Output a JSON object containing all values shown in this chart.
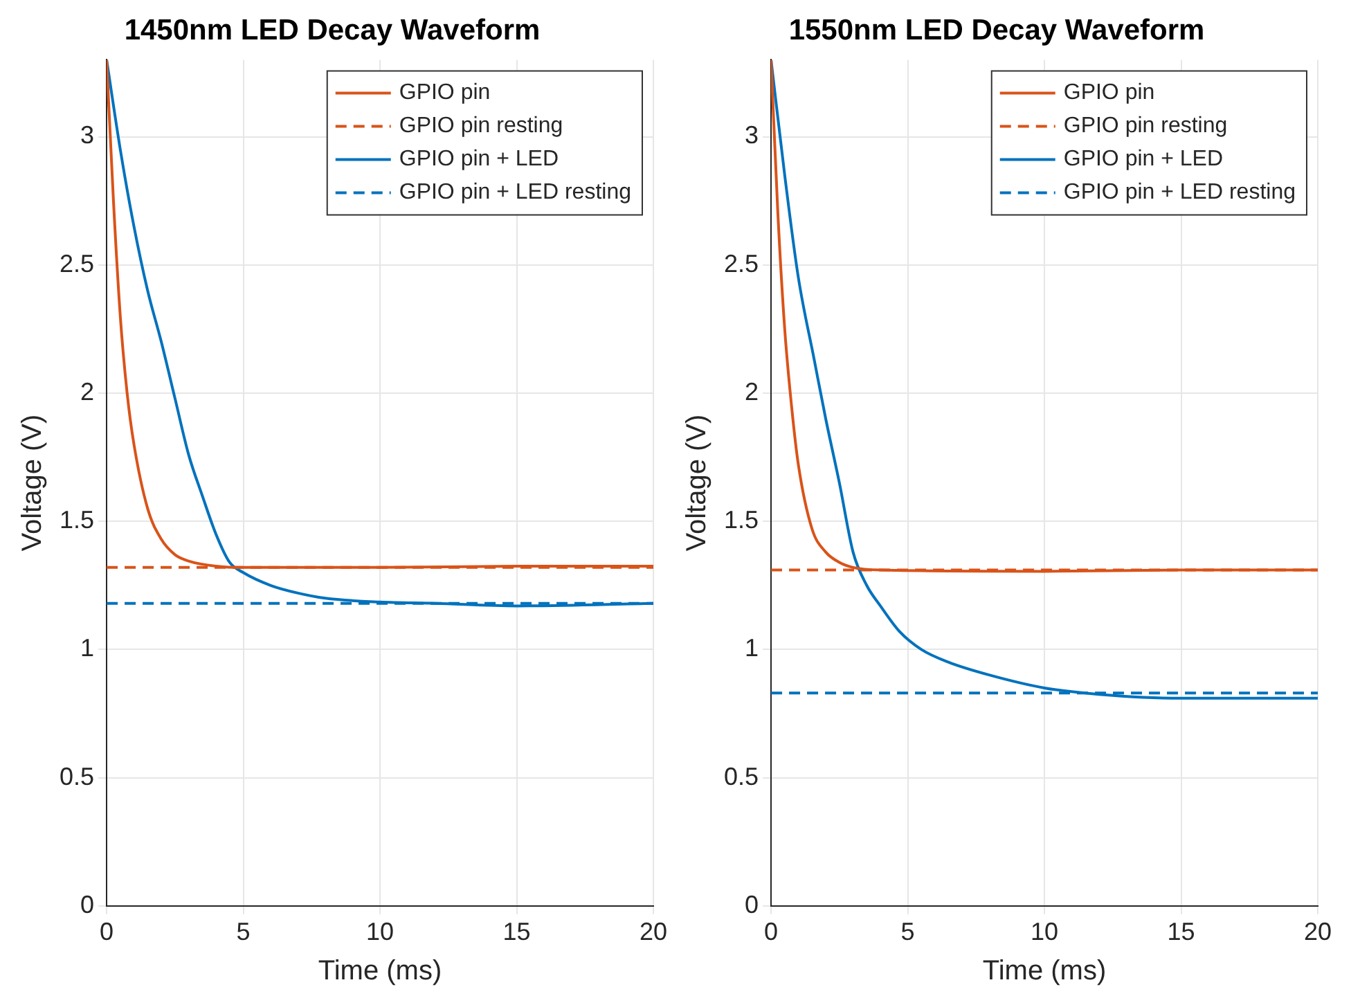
{
  "chart_data": [
    {
      "type": "line",
      "title": "1450nm LED Decay Waveform",
      "xlabel": "Time (ms)",
      "ylabel": "Voltage (V)",
      "xlim": [
        0,
        20
      ],
      "xticks": [
        0,
        5,
        10,
        15,
        20
      ],
      "ylim": [
        0,
        3.3
      ],
      "yticks": [
        0,
        0.5,
        1,
        1.5,
        2,
        2.5,
        3
      ],
      "grid": true,
      "legend": "top right",
      "series": [
        {
          "name": "GPIO pin",
          "color": "#d95319",
          "line_style": "solid",
          "x": [
            0,
            0.25,
            0.5,
            0.75,
            1,
            1.5,
            2,
            2.5,
            3,
            4,
            5,
            10,
            15,
            20
          ],
          "values": [
            3.3,
            2.75,
            2.3,
            2.0,
            1.8,
            1.55,
            1.43,
            1.37,
            1.345,
            1.325,
            1.32,
            1.32,
            1.325,
            1.325
          ]
        },
        {
          "name": "GPIO pin resting",
          "color": "#d95319",
          "line_style": "dashed",
          "x": [
            0,
            20
          ],
          "values": [
            1.32,
            1.32
          ]
        },
        {
          "name": "GPIO pin + LED",
          "color": "#0072bd",
          "line_style": "solid",
          "x": [
            0,
            0.5,
            1,
            1.5,
            2,
            2.5,
            3,
            3.5,
            4,
            4.5,
            5,
            6,
            7,
            8,
            10,
            12,
            15,
            20
          ],
          "values": [
            3.3,
            2.95,
            2.65,
            2.4,
            2.2,
            1.98,
            1.76,
            1.6,
            1.45,
            1.34,
            1.3,
            1.25,
            1.22,
            1.2,
            1.185,
            1.18,
            1.17,
            1.18
          ]
        },
        {
          "name": "GPIO pin + LED resting",
          "color": "#0072bd",
          "line_style": "dashed",
          "x": [
            0,
            20
          ],
          "values": [
            1.18,
            1.18
          ]
        }
      ]
    },
    {
      "type": "line",
      "title": "1550nm LED Decay Waveform",
      "xlabel": "Time (ms)",
      "ylabel": "Voltage (V)",
      "xlim": [
        0,
        20
      ],
      "xticks": [
        0,
        5,
        10,
        15,
        20
      ],
      "ylim": [
        0,
        3.3
      ],
      "yticks": [
        0,
        0.5,
        1,
        1.5,
        2,
        2.5,
        3
      ],
      "grid": true,
      "legend": "top right",
      "series": [
        {
          "name": "GPIO pin",
          "color": "#d95319",
          "line_style": "solid",
          "x": [
            0,
            0.25,
            0.5,
            0.75,
            1,
            1.5,
            2,
            2.5,
            3,
            4,
            10,
            15,
            20
          ],
          "values": [
            3.3,
            2.7,
            2.25,
            1.95,
            1.72,
            1.47,
            1.38,
            1.34,
            1.32,
            1.31,
            1.305,
            1.31,
            1.31
          ]
        },
        {
          "name": "GPIO pin resting",
          "color": "#d95319",
          "line_style": "dashed",
          "x": [
            0,
            20
          ],
          "values": [
            1.31,
            1.31
          ]
        },
        {
          "name": "GPIO pin + LED",
          "color": "#0072bd",
          "line_style": "solid",
          "x": [
            0,
            0.5,
            1,
            1.58,
            2,
            2.5,
            3,
            3.5,
            4,
            4.7,
            5.5,
            6.5,
            8,
            10,
            12,
            15,
            20
          ],
          "values": [
            3.3,
            2.85,
            2.45,
            2.13,
            1.9,
            1.65,
            1.38,
            1.25,
            1.17,
            1.07,
            1.0,
            0.95,
            0.9,
            0.85,
            0.825,
            0.81,
            0.81
          ]
        },
        {
          "name": "GPIO pin + LED resting",
          "color": "#0072bd",
          "line_style": "dashed",
          "x": [
            0,
            20
          ],
          "values": [
            0.83,
            0.83
          ]
        }
      ]
    }
  ]
}
